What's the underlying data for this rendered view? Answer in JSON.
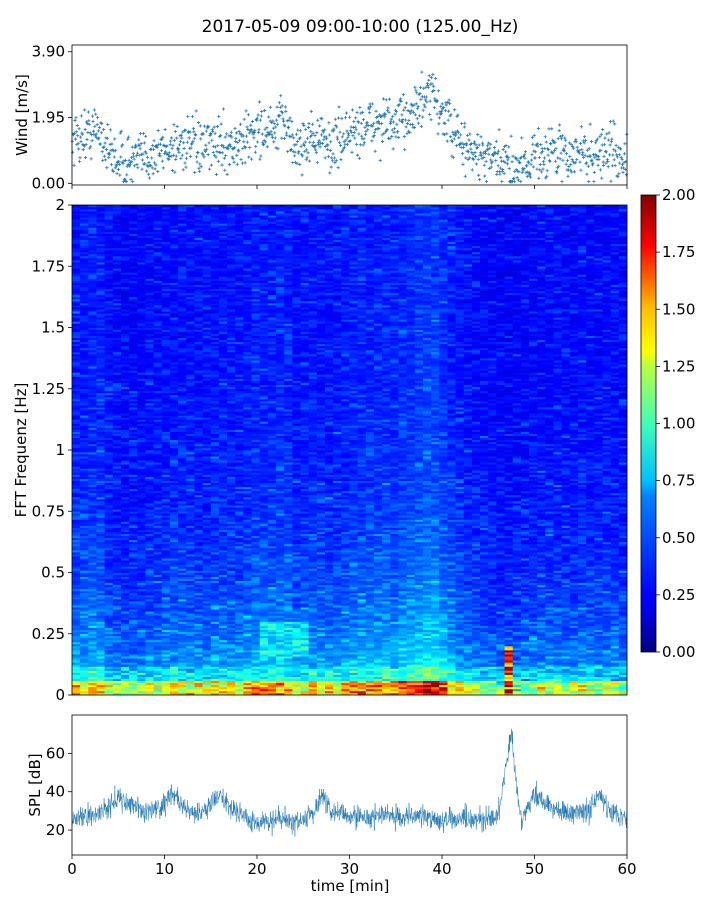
{
  "figure": {
    "title": "2017-05-09 09:00-10:00 (125.00_Hz)"
  },
  "chart_data": [
    {
      "type": "scatter",
      "name": "wind-panel",
      "ylabel": "Wind [m/s]",
      "xlim": [
        0,
        60
      ],
      "ylim": [
        -0.05,
        4.1
      ],
      "yticks": [
        0.0,
        1.95,
        3.9
      ],
      "ytick_labels": [
        "0.00",
        "1.95",
        "3.90"
      ],
      "marker": "+",
      "color": "#1f77b4",
      "x_step_min": 0.05,
      "wind_profile": {
        "x": [
          0,
          2,
          3,
          4,
          6,
          8,
          10,
          12,
          14,
          16,
          18,
          20,
          22,
          23,
          24,
          26,
          28,
          30,
          32,
          34,
          35,
          36,
          37,
          38,
          39,
          40,
          41,
          42,
          44,
          46,
          48,
          50,
          52,
          54,
          55,
          56,
          58,
          60
        ],
        "y": [
          1.3,
          1.5,
          1.6,
          0.9,
          0.6,
          0.8,
          1.0,
          1.2,
          1.0,
          1.2,
          1.1,
          1.6,
          1.5,
          2.0,
          1.0,
          1.4,
          1.1,
          1.5,
          1.7,
          1.8,
          1.6,
          2.0,
          2.2,
          2.4,
          2.6,
          2.1,
          1.6,
          1.2,
          0.8,
          0.6,
          0.5,
          0.8,
          1.0,
          0.7,
          1.0,
          0.8,
          1.0,
          0.7
        ]
      },
      "wind_range": {
        "min": 0.05,
        "max": 3.9
      }
    },
    {
      "type": "heatmap",
      "name": "spectrogram-panel",
      "ylabel": "FFT Frequenz [Hz]",
      "xlim": [
        0,
        60
      ],
      "ylim": [
        0,
        2
      ],
      "yticks": [
        0,
        0.25,
        0.5,
        0.75,
        1,
        1.25,
        1.5,
        1.75,
        2
      ],
      "ytick_labels": [
        "0",
        "0.25",
        "0.5",
        "0.75",
        "1",
        "1.25",
        "1.5",
        "1.75",
        "2"
      ],
      "colormap": "jet",
      "colorbar": {
        "range": [
          0.0,
          2.0
        ],
        "ticks": [
          0.0,
          0.25,
          0.5,
          0.75,
          1.0,
          1.25,
          1.5,
          1.75,
          2.0
        ],
        "tick_labels": [
          "0.00",
          "0.25",
          "0.50",
          "0.75",
          "1.00",
          "1.25",
          "1.50",
          "1.75",
          "2.00"
        ]
      },
      "time_bins": 68,
      "freq_bins": 240,
      "notable_regions": [
        {
          "time_min": [
            46.5,
            47.5
          ],
          "freq_hz": [
            0.0,
            0.2
          ],
          "level": 2.0
        },
        {
          "time_min": [
            20,
            26
          ],
          "freq_hz": [
            0.15,
            0.3
          ],
          "level": 0.9
        }
      ]
    },
    {
      "type": "line",
      "name": "spl-panel",
      "ylabel": "SPL [dB]",
      "xlabel": "time [min]",
      "xlim": [
        0,
        60
      ],
      "ylim": [
        7,
        80
      ],
      "yticks": [
        20,
        40,
        60
      ],
      "ytick_labels": [
        "20",
        "40",
        "60"
      ],
      "xticks": [
        0,
        10,
        20,
        30,
        40,
        50,
        60
      ],
      "xtick_labels": [
        "0",
        "10",
        "20",
        "30",
        "40",
        "50",
        "60"
      ],
      "color": "#1f77b4",
      "spl_profile": {
        "x": [
          0,
          2,
          4,
          5,
          6,
          8,
          10,
          11,
          12,
          14,
          15,
          16,
          18,
          20,
          22,
          24,
          26,
          27,
          28,
          30,
          32,
          34,
          36,
          38,
          40,
          42,
          44,
          46,
          46.5,
          47,
          47.5,
          48,
          48.5,
          49,
          50,
          52,
          54,
          56,
          57,
          58,
          60
        ],
        "y": [
          25,
          27,
          32,
          38,
          33,
          30,
          34,
          40,
          32,
          28,
          34,
          37,
          28,
          24,
          26,
          24,
          28,
          37,
          29,
          27,
          26,
          28,
          26,
          27,
          25,
          26,
          25,
          27,
          40,
          55,
          70,
          45,
          26,
          28,
          38,
          32,
          28,
          30,
          38,
          31,
          25
        ]
      },
      "noise_amplitude_db": 6
    }
  ]
}
